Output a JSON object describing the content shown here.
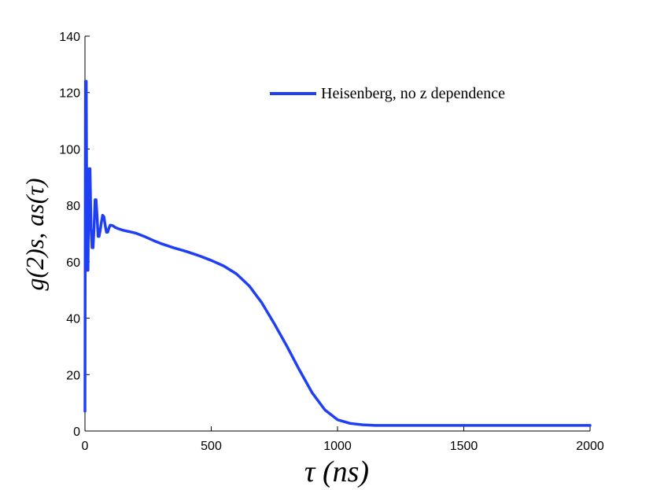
{
  "chart_data": {
    "type": "line",
    "xlabel": "τ (ns)",
    "ylabel": "g(2)s, as(τ)",
    "xlim": [
      0,
      2000
    ],
    "ylim": [
      0,
      140
    ],
    "xticks": [
      0,
      500,
      1000,
      1500,
      2000
    ],
    "yticks": [
      0,
      20,
      40,
      60,
      80,
      100,
      120,
      140
    ],
    "grid": false,
    "legend_placement": "top-right",
    "series": [
      {
        "name": "Heisenberg, no z dependence",
        "color": "#1f3ff5",
        "x": [
          0,
          2,
          5,
          8,
          12,
          16,
          20,
          24,
          28,
          32,
          36,
          40,
          44,
          48,
          52,
          56,
          60,
          65,
          70,
          75,
          80,
          85,
          90,
          95,
          100,
          110,
          120,
          130,
          140,
          150,
          160,
          170,
          180,
          190,
          200,
          220,
          240,
          260,
          280,
          300,
          350,
          400,
          450,
          500,
          550,
          600,
          650,
          700,
          750,
          800,
          850,
          900,
          950,
          1000,
          1050,
          1100,
          1150,
          1200,
          1250,
          1300,
          1400,
          1500,
          1600,
          1700,
          1800,
          1900,
          2000
        ],
        "y": [
          7,
          124,
          124,
          57,
          57,
          93,
          93,
          72,
          65,
          65,
          72,
          82,
          82,
          76,
          69,
          69,
          71,
          74,
          76.5,
          76,
          73,
          70.5,
          70.5,
          72,
          73,
          72.8,
          72.2,
          71.8,
          71.5,
          71.2,
          71.0,
          70.8,
          70.6,
          70.4,
          70.2,
          69.5,
          68.8,
          68.0,
          67.2,
          66.5,
          65.0,
          63.7,
          62.2,
          60.5,
          58.5,
          55.7,
          51.5,
          45.5,
          38.0,
          30.0,
          21.5,
          13.5,
          7.5,
          4.0,
          2.7,
          2.2,
          2.0,
          2.0,
          2.0,
          2.0,
          2.0,
          2.0,
          2.0,
          2.0,
          2.0,
          2.0,
          2.0
        ]
      }
    ]
  }
}
